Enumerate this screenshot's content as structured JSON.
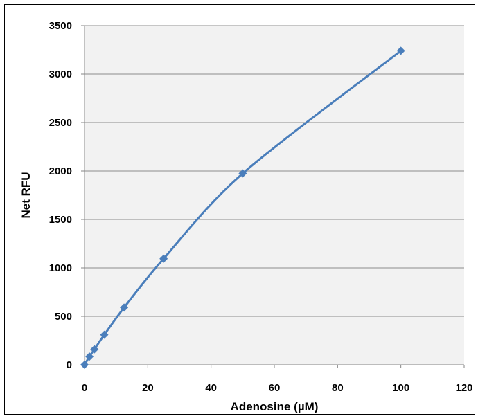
{
  "chart_data": {
    "type": "scatter",
    "title": "",
    "xlabel": "Adenosine (µM)",
    "ylabel": "Net RFU",
    "xlim": [
      0,
      120
    ],
    "ylim": [
      0,
      3500
    ],
    "xticks": [
      0,
      20,
      40,
      60,
      80,
      100,
      120
    ],
    "yticks": [
      0,
      500,
      1000,
      1500,
      2000,
      2500,
      3000,
      3500
    ],
    "grid": "horizontal",
    "legend": "none",
    "series": [
      {
        "x": [
          0,
          1.5625,
          3.125,
          6.25,
          12.5,
          25,
          50,
          100
        ],
        "y": [
          0,
          85,
          160,
          310,
          590,
          1095,
          1975,
          3240
        ],
        "marker": "diamond",
        "line": "smooth"
      }
    ]
  },
  "colors": {
    "series": "#4a7ebb",
    "plot_background": "#f2f2f2",
    "grid": "#8c8c8c",
    "axis": "#868686"
  }
}
